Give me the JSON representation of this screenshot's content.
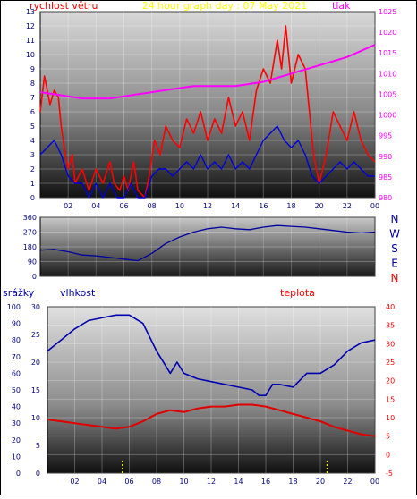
{
  "title": "24 hour graph day : 07 May 2021",
  "panel1": {
    "label_left": "rychlost větru",
    "label_right": "tlak",
    "wind_ticks": [
      "0",
      "1",
      "2",
      "3",
      "4",
      "5",
      "6",
      "7",
      "8",
      "9",
      "10",
      "11",
      "12",
      "13"
    ],
    "pressure_ticks": [
      "980",
      "985",
      "990",
      "995",
      "1000",
      "1005",
      "1010",
      "1015",
      "1020",
      "1025"
    ]
  },
  "panel2": {
    "dir_ticks": [
      "0",
      "90",
      "180",
      "270",
      "360"
    ],
    "compass": [
      "N",
      "W",
      "S",
      "E",
      "N"
    ]
  },
  "panel3": {
    "label_rain": "srážky",
    "label_humidity": "vlhkost",
    "label_temp": "teplota",
    "rain_ticks": [
      "0",
      "10",
      "20",
      "30",
      "40",
      "50",
      "60",
      "70",
      "80",
      "90",
      "100"
    ],
    "humidity_ticks": [
      "0",
      "5",
      "10",
      "15",
      "20",
      "25",
      "30"
    ],
    "temp_ticks": [
      "-5",
      "0",
      "5",
      "10",
      "15",
      "20",
      "25",
      "30",
      "35",
      "40"
    ]
  },
  "x_ticks": [
    "02",
    "04",
    "06",
    "08",
    "10",
    "12",
    "14",
    "16",
    "18",
    "20",
    "22",
    "00"
  ],
  "colors": {
    "gust": "#ff0000",
    "wind_avg": "#0000dd",
    "pressure": "#ff00ff",
    "direction": "#0000a0",
    "humidity": "#0000b0",
    "temperature": "#e00000",
    "rain": "#ffff00",
    "title": "#ffff00",
    "left_axis_text": "#000080",
    "right_axis_text": "#ff00ff",
    "temp_axis_text": "#ff0000"
  },
  "chart_data": [
    {
      "type": "line",
      "x_unit": "hour",
      "xlim": [
        0,
        24
      ],
      "series": [
        {
          "name": "rychlost větru",
          "role": "gust",
          "ylim": [
            0,
            13
          ],
          "points": [
            [
              0,
              6
            ],
            [
              0.3,
              8.5
            ],
            [
              0.7,
              6.5
            ],
            [
              1,
              7.5
            ],
            [
              1.3,
              7
            ],
            [
              1.5,
              5
            ],
            [
              1.8,
              3
            ],
            [
              2,
              2
            ],
            [
              2.3,
              3
            ],
            [
              2.5,
              1
            ],
            [
              3,
              2
            ],
            [
              3.5,
              0.5
            ],
            [
              4,
              2
            ],
            [
              4.5,
              1
            ],
            [
              5,
              2.5
            ],
            [
              5.3,
              1
            ],
            [
              5.7,
              0.5
            ],
            [
              6,
              1.5
            ],
            [
              6.3,
              0.5
            ],
            [
              6.7,
              2.5
            ],
            [
              7,
              0.5
            ],
            [
              7.5,
              0
            ],
            [
              7.8,
              1.5
            ],
            [
              8.2,
              4
            ],
            [
              8.6,
              3
            ],
            [
              9,
              5
            ],
            [
              9.5,
              4
            ],
            [
              10,
              3.5
            ],
            [
              10.5,
              5.5
            ],
            [
              11,
              4.5
            ],
            [
              11.5,
              6
            ],
            [
              12,
              4
            ],
            [
              12.5,
              5.5
            ],
            [
              13,
              4.5
            ],
            [
              13.5,
              7
            ],
            [
              14,
              5
            ],
            [
              14.5,
              6
            ],
            [
              15,
              4
            ],
            [
              15.5,
              7.5
            ],
            [
              16,
              9
            ],
            [
              16.5,
              8
            ],
            [
              17,
              11
            ],
            [
              17.3,
              9
            ],
            [
              17.6,
              12
            ],
            [
              18,
              8
            ],
            [
              18.5,
              10
            ],
            [
              19,
              9
            ],
            [
              19.3,
              6
            ],
            [
              19.6,
              3
            ],
            [
              20,
              1
            ],
            [
              20.5,
              3
            ],
            [
              21,
              6
            ],
            [
              21.5,
              5
            ],
            [
              22,
              4
            ],
            [
              22.5,
              6
            ],
            [
              23,
              4
            ],
            [
              23.5,
              3
            ],
            [
              24,
              2.5
            ]
          ]
        },
        {
          "name": "rychlost větru",
          "role": "average",
          "ylim": [
            0,
            13
          ],
          "points": [
            [
              0,
              3
            ],
            [
              0.5,
              3.5
            ],
            [
              1,
              4
            ],
            [
              1.5,
              3
            ],
            [
              2,
              1.5
            ],
            [
              2.5,
              1
            ],
            [
              3,
              1
            ],
            [
              3.5,
              0
            ],
            [
              4,
              1
            ],
            [
              4.5,
              0
            ],
            [
              5,
              1
            ],
            [
              5.5,
              0
            ],
            [
              6,
              0
            ],
            [
              6.5,
              1
            ],
            [
              7,
              0
            ],
            [
              7.5,
              0
            ],
            [
              8,
              1.5
            ],
            [
              8.5,
              2
            ],
            [
              9,
              2
            ],
            [
              9.5,
              1.5
            ],
            [
              10,
              2
            ],
            [
              10.5,
              2.5
            ],
            [
              11,
              2
            ],
            [
              11.5,
              3
            ],
            [
              12,
              2
            ],
            [
              12.5,
              2.5
            ],
            [
              13,
              2
            ],
            [
              13.5,
              3
            ],
            [
              14,
              2
            ],
            [
              14.5,
              2.5
            ],
            [
              15,
              2
            ],
            [
              15.5,
              3
            ],
            [
              16,
              4
            ],
            [
              16.5,
              4.5
            ],
            [
              17,
              5
            ],
            [
              17.5,
              4
            ],
            [
              18,
              3.5
            ],
            [
              18.5,
              4
            ],
            [
              19,
              3
            ],
            [
              19.5,
              1.5
            ],
            [
              20,
              1
            ],
            [
              20.5,
              1.5
            ],
            [
              21,
              2
            ],
            [
              21.5,
              2.5
            ],
            [
              22,
              2
            ],
            [
              22.5,
              2.5
            ],
            [
              23,
              2
            ],
            [
              23.5,
              1.5
            ],
            [
              24,
              1.5
            ]
          ]
        },
        {
          "name": "tlak",
          "role": "pressure",
          "ylim": [
            980,
            1025
          ],
          "points": [
            [
              0,
              1005.5
            ],
            [
              1,
              1005
            ],
            [
              2,
              1004.5
            ],
            [
              3,
              1004
            ],
            [
              4,
              1004
            ],
            [
              5,
              1004
            ],
            [
              6,
              1004.5
            ],
            [
              7,
              1005
            ],
            [
              8,
              1005.5
            ],
            [
              9,
              1006
            ],
            [
              10,
              1006.5
            ],
            [
              11,
              1007
            ],
            [
              12,
              1007
            ],
            [
              13,
              1007
            ],
            [
              14,
              1007
            ],
            [
              15,
              1007.5
            ],
            [
              16,
              1008
            ],
            [
              17,
              1009
            ],
            [
              18,
              1010
            ],
            [
              19,
              1011
            ],
            [
              20,
              1012
            ],
            [
              21,
              1013
            ],
            [
              22,
              1014
            ],
            [
              23,
              1015.5
            ],
            [
              24,
              1017
            ]
          ]
        }
      ]
    },
    {
      "type": "line",
      "x_unit": "hour",
      "xlim": [
        0,
        24
      ],
      "ylim": [
        0,
        360
      ],
      "series": [
        {
          "name": "",
          "role": "wind_direction",
          "points": [
            [
              0,
              160
            ],
            [
              1,
              165
            ],
            [
              2,
              150
            ],
            [
              3,
              130
            ],
            [
              4,
              125
            ],
            [
              5,
              115
            ],
            [
              6,
              105
            ],
            [
              7,
              95
            ],
            [
              8,
              140
            ],
            [
              9,
              200
            ],
            [
              10,
              240
            ],
            [
              11,
              270
            ],
            [
              12,
              290
            ],
            [
              13,
              300
            ],
            [
              14,
              290
            ],
            [
              15,
              285
            ],
            [
              16,
              300
            ],
            [
              17,
              310
            ],
            [
              18,
              305
            ],
            [
              19,
              300
            ],
            [
              20,
              290
            ],
            [
              21,
              280
            ],
            [
              22,
              270
            ],
            [
              23,
              265
            ],
            [
              24,
              270
            ]
          ]
        }
      ]
    },
    {
      "type": "line",
      "x_unit": "hour",
      "xlim": [
        0,
        24
      ],
      "series": [
        {
          "name": "vlhkost",
          "role": "humidity",
          "ylim": [
            0,
            30
          ],
          "points": [
            [
              0,
              22
            ],
            [
              1,
              24
            ],
            [
              2,
              26
            ],
            [
              3,
              27.5
            ],
            [
              4,
              28
            ],
            [
              5,
              28.5
            ],
            [
              6,
              28.5
            ],
            [
              7,
              27
            ],
            [
              8,
              22
            ],
            [
              9,
              18
            ],
            [
              9.5,
              20
            ],
            [
              10,
              18
            ],
            [
              11,
              17
            ],
            [
              12,
              16.5
            ],
            [
              13,
              16
            ],
            [
              14,
              15.5
            ],
            [
              15,
              15
            ],
            [
              15.5,
              14
            ],
            [
              16,
              14
            ],
            [
              16.5,
              16
            ],
            [
              17,
              16
            ],
            [
              18,
              15.5
            ],
            [
              19,
              18
            ],
            [
              20,
              18
            ],
            [
              21,
              19.5
            ],
            [
              22,
              22
            ],
            [
              23,
              23.5
            ],
            [
              24,
              24
            ]
          ]
        },
        {
          "name": "teplota",
          "role": "temperature",
          "ylim": [
            -5,
            40
          ],
          "points": [
            [
              0,
              9.5
            ],
            [
              1,
              9
            ],
            [
              2,
              8.5
            ],
            [
              3,
              8
            ],
            [
              4,
              7.5
            ],
            [
              5,
              7
            ],
            [
              6,
              7.5
            ],
            [
              7,
              9
            ],
            [
              8,
              11
            ],
            [
              9,
              12
            ],
            [
              10,
              11.5
            ],
            [
              11,
              12.5
            ],
            [
              12,
              13
            ],
            [
              13,
              13
            ],
            [
              14,
              13.5
            ],
            [
              15,
              13.5
            ],
            [
              16,
              13
            ],
            [
              17,
              12
            ],
            [
              18,
              11
            ],
            [
              19,
              10
            ],
            [
              20,
              9
            ],
            [
              21,
              7.5
            ],
            [
              22,
              6.5
            ],
            [
              23,
              5.5
            ],
            [
              24,
              5
            ]
          ]
        },
        {
          "name": "srážky",
          "role": "rain",
          "ylim": [
            0,
            100
          ],
          "points": [
            [
              5.5,
              8
            ],
            [
              20.5,
              8
            ]
          ]
        }
      ]
    }
  ]
}
